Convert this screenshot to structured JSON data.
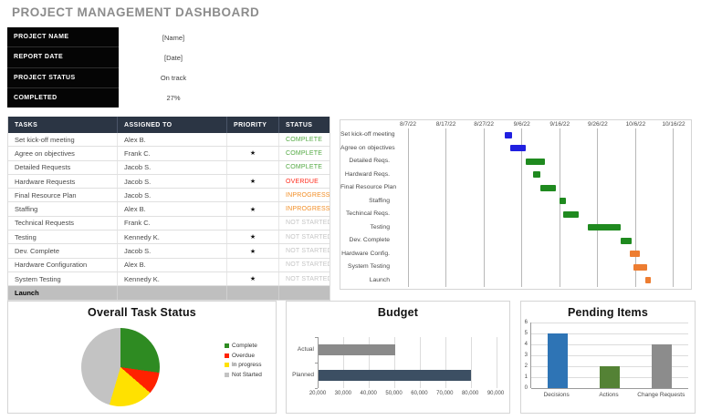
{
  "title": "PROJECT MANAGEMENT DASHBOARD",
  "info_panel": {
    "rows": [
      {
        "label": "PROJECT NAME",
        "value": "[Name]"
      },
      {
        "label": "REPORT DATE",
        "value": "[Date]"
      },
      {
        "label": "PROJECT STATUS",
        "value": "On track"
      },
      {
        "label": "COMPLETED",
        "value": "27%"
      }
    ]
  },
  "task_table": {
    "headers": [
      "TASKS",
      "ASSIGNED TO",
      "PRIORITY",
      "STATUS"
    ],
    "priority_symbol": "★",
    "status_colors": {
      "COMPLETE": "#53A943",
      "OVERDUE": "#FF2D1E",
      "INPROGRESS": "#F28E26",
      "NOT STARTED": "#C5C5C5"
    },
    "rows": [
      {
        "task": "Set kick-off meeting",
        "assigned": "Alex B.",
        "priority": false,
        "status": "COMPLETE",
        "summary": false
      },
      {
        "task": "Agree on objectives",
        "assigned": "Frank C.",
        "priority": true,
        "status": "COMPLETE",
        "summary": false
      },
      {
        "task": "Detailed Requests",
        "assigned": "Jacob S.",
        "priority": false,
        "status": "COMPLETE",
        "summary": false
      },
      {
        "task": "Hardware Requests",
        "assigned": "Jacob S.",
        "priority": true,
        "status": "OVERDUE",
        "summary": false
      },
      {
        "task": "Final Resource Plan",
        "assigned": "Jacob S.",
        "priority": false,
        "status": "INPROGRESS",
        "summary": false
      },
      {
        "task": "Staffing",
        "assigned": "Alex B.",
        "priority": true,
        "status": "INPROGRESS",
        "summary": false
      },
      {
        "task": "Technical Requests",
        "assigned": "Frank C.",
        "priority": false,
        "status": "NOT STARTED",
        "summary": false
      },
      {
        "task": "Testing",
        "assigned": "Kennedy K.",
        "priority": true,
        "status": "NOT STARTED",
        "summary": false
      },
      {
        "task": "Dev. Complete",
        "assigned": "Jacob S.",
        "priority": true,
        "status": "NOT STARTED",
        "summary": false
      },
      {
        "task": "Hardware Configuration",
        "assigned": "Alex B.",
        "priority": false,
        "status": "NOT STARTED",
        "summary": false
      },
      {
        "task": "System Testing",
        "assigned": "Kennedy K.",
        "priority": true,
        "status": "NOT STARTED",
        "summary": false
      },
      {
        "task": "Launch",
        "assigned": "",
        "priority": false,
        "status": "",
        "summary": true
      }
    ]
  },
  "chart_data": [
    {
      "type": "gantt",
      "x_tick_labels": [
        "8/7/22",
        "8/17/22",
        "8/27/22",
        "9/6/22",
        "9/16/22",
        "9/26/22",
        "10/6/22",
        "10/16/22"
      ],
      "x_start_date": "8/7/22",
      "x_tick_interval_days": 10,
      "bars": [
        {
          "label": "Set kick-off meeting",
          "start_day": 25.5,
          "end_day": 27.5,
          "color": "#2020E0"
        },
        {
          "label": "Agree on objectives",
          "start_day": 27,
          "end_day": 31,
          "color": "#2020E0"
        },
        {
          "label": "Detailed Reqs.",
          "start_day": 31,
          "end_day": 36,
          "color": "#1F8A1F"
        },
        {
          "label": "Hardward Reqs.",
          "start_day": 33,
          "end_day": 35,
          "color": "#1F8A1F"
        },
        {
          "label": "Final Resource Plan",
          "start_day": 35,
          "end_day": 39,
          "color": "#1F8A1F"
        },
        {
          "label": "Staffing",
          "start_day": 40,
          "end_day": 41.5,
          "color": "#1F8A1F"
        },
        {
          "label": "Techincal Reqs.",
          "start_day": 41,
          "end_day": 45,
          "color": "#1F8A1F"
        },
        {
          "label": "Testing",
          "start_day": 47.5,
          "end_day": 56,
          "color": "#1F8A1F"
        },
        {
          "label": "Dev. Complete",
          "start_day": 56,
          "end_day": 59,
          "color": "#1F8A1F"
        },
        {
          "label": "Hardware Config.",
          "start_day": 58.5,
          "end_day": 61,
          "color": "#ED7D31"
        },
        {
          "label": "System Testing",
          "start_day": 59.5,
          "end_day": 63,
          "color": "#ED7D31"
        },
        {
          "label": "Launch",
          "start_day": 62.5,
          "end_day": 64,
          "color": "#ED7D31"
        }
      ]
    },
    {
      "type": "pie",
      "title": "Overall Task Status",
      "legend_position": "right",
      "slices": [
        {
          "label": "Complete",
          "value": 3,
          "color": "#2E8B22"
        },
        {
          "label": "Overdue",
          "value": 1,
          "color": "#FF2200"
        },
        {
          "label": "In progress",
          "value": 2,
          "color": "#FFE100"
        },
        {
          "label": "Not Started",
          "value": 5,
          "color": "#C3C3C3"
        }
      ]
    },
    {
      "type": "bar",
      "orientation": "horizontal",
      "title": "Budget",
      "categories": [
        "Actual",
        "Planned"
      ],
      "values": [
        50000,
        80000
      ],
      "colors": [
        "#8A8A8A",
        "#3C4F63"
      ],
      "xlim": [
        20000,
        90000
      ],
      "x_tick_labels": [
        "20,000",
        "30,000",
        "40,000",
        "50,000",
        "60,000",
        "70,000",
        "80,000",
        "90,000"
      ]
    },
    {
      "type": "bar",
      "orientation": "vertical",
      "title": "Pending Items",
      "categories": [
        "Decisions",
        "Actions",
        "Change Requests"
      ],
      "values": [
        5,
        2,
        4
      ],
      "colors": [
        "#2E74B5",
        "#548235",
        "#8C8C8C"
      ],
      "ylim": [
        0,
        6
      ],
      "y_ticks": [
        0,
        1,
        2,
        3,
        4,
        5,
        6
      ]
    }
  ]
}
